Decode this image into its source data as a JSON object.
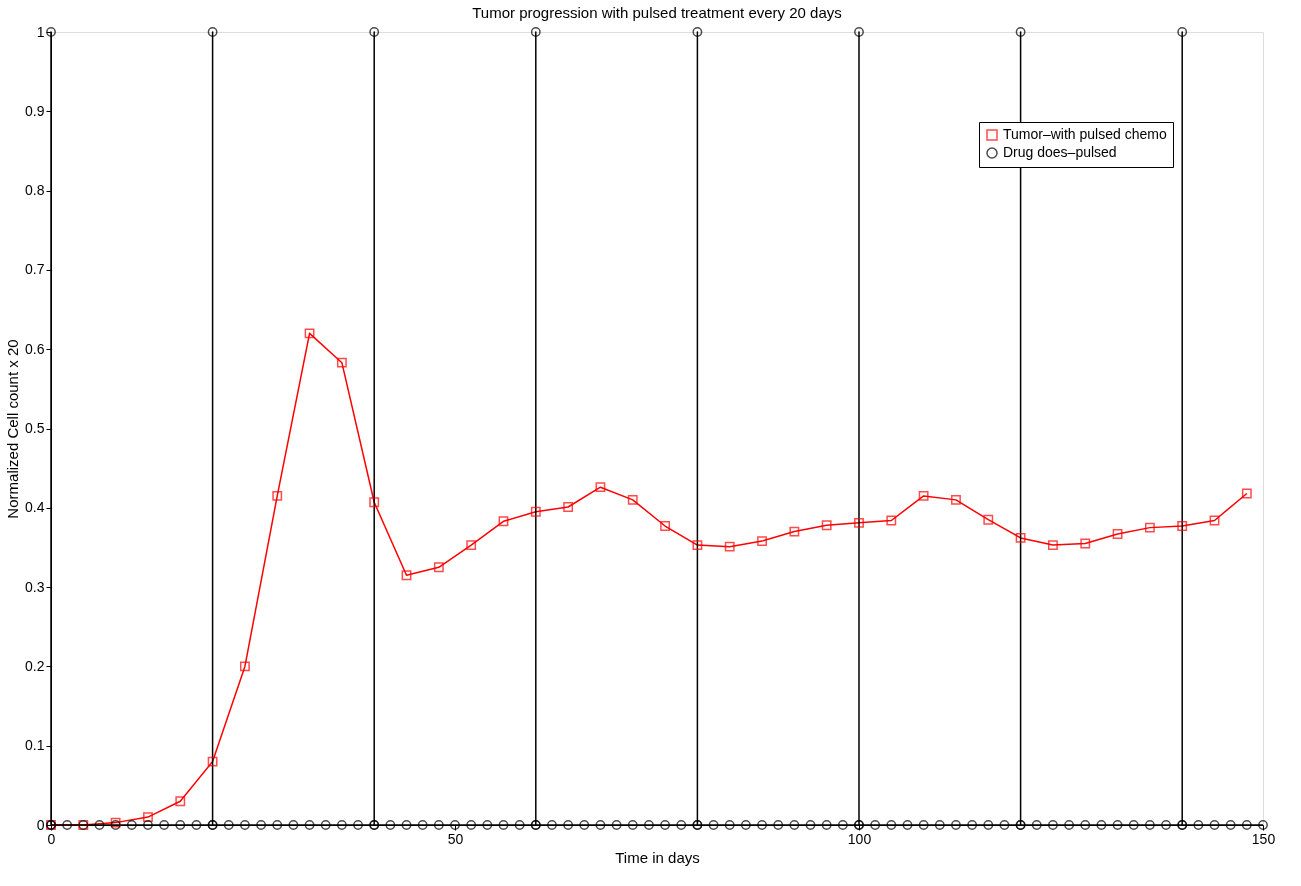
{
  "chart_data": {
    "type": "line",
    "title": "Tumor progression with pulsed treatment every 20 days",
    "xlabel": "Time in days",
    "ylabel": "Normalized Cell count x 20",
    "xlim": [
      0,
      150
    ],
    "xticks": [
      0,
      50,
      100,
      150
    ],
    "ylim": [
      0,
      1
    ],
    "yticks": [
      0,
      0.1,
      0.2,
      0.3,
      0.4,
      0.5,
      0.6,
      0.7,
      0.8,
      0.9,
      1
    ],
    "grid": false,
    "legend": "top right",
    "series": [
      {
        "name": "Tumor–with pulsed chemo",
        "color": "#ff0000",
        "marker": "square",
        "x": [
          0,
          4,
          8,
          12,
          16,
          20,
          24,
          28,
          32,
          36,
          40,
          44,
          48,
          52,
          56,
          60,
          64,
          68,
          72,
          76,
          80,
          84,
          88,
          92,
          96,
          100,
          104,
          108,
          112,
          116,
          120,
          124,
          128,
          132,
          136,
          140,
          144,
          148
        ],
        "values": [
          0,
          0,
          0.003,
          0.01,
          0.03,
          0.08,
          0.2,
          0.415,
          0.62,
          0.583,
          0.407,
          0.315,
          0.325,
          0.353,
          0.383,
          0.395,
          0.401,
          0.426,
          0.41,
          0.377,
          0.353,
          0.351,
          0.358,
          0.37,
          0.378,
          0.381,
          0.384,
          0.415,
          0.41,
          0.385,
          0.362,
          0.353,
          0.355,
          0.367,
          0.375,
          0.377,
          0.384,
          0.418
        ]
      },
      {
        "name": "Drug does–pulsed",
        "color": "#000000",
        "marker": "circle",
        "x": [
          0,
          0,
          0,
          2,
          4,
          6,
          8,
          10,
          12,
          14,
          16,
          18,
          20,
          20,
          20,
          22,
          24,
          26,
          28,
          30,
          32,
          34,
          36,
          38,
          40,
          40,
          40,
          42,
          44,
          46,
          48,
          50,
          52,
          54,
          56,
          58,
          60,
          60,
          60,
          62,
          64,
          66,
          68,
          70,
          72,
          74,
          76,
          78,
          80,
          80,
          80,
          82,
          84,
          86,
          88,
          90,
          92,
          94,
          96,
          98,
          100,
          100,
          100,
          102,
          104,
          106,
          108,
          110,
          112,
          114,
          116,
          118,
          120,
          120,
          120,
          122,
          124,
          126,
          128,
          130,
          132,
          134,
          136,
          138,
          140,
          140,
          140,
          142,
          144,
          146,
          148,
          150
        ],
        "values": [
          0,
          1,
          0,
          0,
          0,
          0,
          0,
          0,
          0,
          0,
          0,
          0,
          0,
          1,
          0,
          0,
          0,
          0,
          0,
          0,
          0,
          0,
          0,
          0,
          0,
          1,
          0,
          0,
          0,
          0,
          0,
          0,
          0,
          0,
          0,
          0,
          0,
          1,
          0,
          0,
          0,
          0,
          0,
          0,
          0,
          0,
          0,
          0,
          0,
          1,
          0,
          0,
          0,
          0,
          0,
          0,
          0,
          0,
          0,
          0,
          0,
          1,
          0,
          0,
          0,
          0,
          0,
          0,
          0,
          0,
          0,
          0,
          0,
          1,
          0,
          0,
          0,
          0,
          0,
          0,
          0,
          0,
          0,
          0,
          0,
          1,
          0,
          0,
          0,
          0,
          0,
          0
        ]
      }
    ]
  }
}
